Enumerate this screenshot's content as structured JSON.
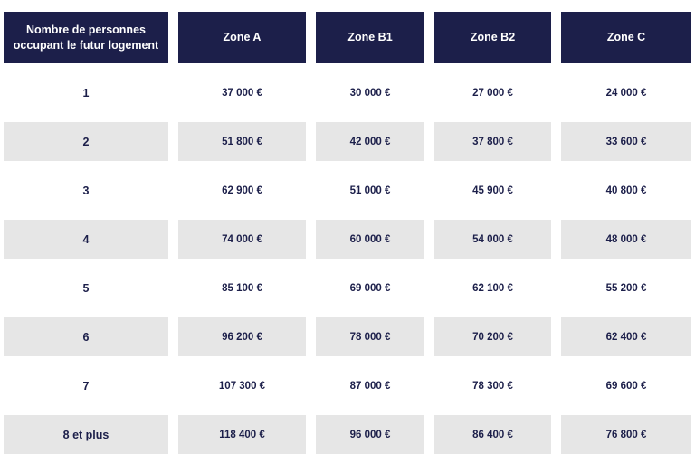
{
  "header": {
    "persons_line1": "Nombre de personnes",
    "persons_line2": "occupant le futur logement",
    "zone_a": "Zone A",
    "zone_b1": "Zone B1",
    "zone_b2": "Zone B2",
    "zone_c": "Zone C"
  },
  "rows": [
    {
      "persons": "1",
      "zone_a": "37 000 €",
      "zone_b1": "30 000 €",
      "zone_b2": "27 000 €",
      "zone_c": "24 000 €"
    },
    {
      "persons": "2",
      "zone_a": "51 800 €",
      "zone_b1": "42 000 €",
      "zone_b2": "37 800 €",
      "zone_c": "33 600 €"
    },
    {
      "persons": "3",
      "zone_a": "62 900 €",
      "zone_b1": "51 000 €",
      "zone_b2": "45 900 €",
      "zone_c": "40 800 €"
    },
    {
      "persons": "4",
      "zone_a": "74 000 €",
      "zone_b1": "60 000 €",
      "zone_b2": "54 000 €",
      "zone_c": "48 000 €"
    },
    {
      "persons": "5",
      "zone_a": "85 100 €",
      "zone_b1": "69 000 €",
      "zone_b2": "62 100 €",
      "zone_c": "55 200 €"
    },
    {
      "persons": "6",
      "zone_a": "96 200 €",
      "zone_b1": "78 000 €",
      "zone_b2": "70 200 €",
      "zone_c": "62 400 €"
    },
    {
      "persons": "7",
      "zone_a": "107 300 €",
      "zone_b1": "87 000 €",
      "zone_b2": "78 300 €",
      "zone_c": "69 600 €"
    },
    {
      "persons": "8 et plus",
      "zone_a": "118 400 €",
      "zone_b1": "96 000 €",
      "zone_b2": "86 400 €",
      "zone_c": "76 800 €"
    }
  ],
  "colors": {
    "header_bg": "#1c1f4a",
    "header_text": "#ffffff",
    "body_text": "#1c1f4a",
    "shaded_row_bg": "#e6e6e6"
  }
}
